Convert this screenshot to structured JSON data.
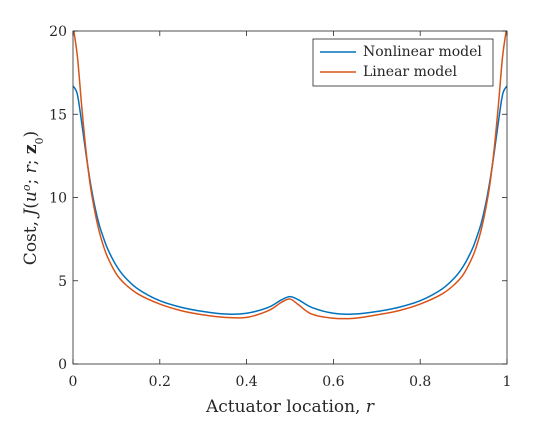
{
  "chart_data": {
    "type": "line",
    "xlabel": "Actuator location, r",
    "ylabel": "Cost, J(u°; r; z₀)",
    "xlim": [
      0,
      1
    ],
    "ylim": [
      0,
      20
    ],
    "x_ticks": [
      0,
      0.2,
      0.4,
      0.6,
      0.8,
      1
    ],
    "x_tick_labels": [
      "0",
      "0.2",
      "0.4",
      "0.6",
      "0.8",
      "1"
    ],
    "y_ticks": [
      0,
      5,
      10,
      15,
      20
    ],
    "y_tick_labels": [
      "0",
      "5",
      "10",
      "15",
      "20"
    ],
    "grid": false,
    "legend_position": "top-right",
    "series": [
      {
        "name": "Nonlinear model",
        "color": "#0072BD",
        "x": [
          0,
          0.01,
          0.02,
          0.03,
          0.04,
          0.05,
          0.06,
          0.07,
          0.08,
          0.1,
          0.12,
          0.15,
          0.2,
          0.25,
          0.3,
          0.35,
          0.4,
          0.45,
          0.48,
          0.5,
          0.52,
          0.55,
          0.6,
          0.65,
          0.7,
          0.75,
          0.8,
          0.85,
          0.88,
          0.9,
          0.92,
          0.93,
          0.94,
          0.95,
          0.96,
          0.97,
          0.98,
          0.99,
          1
        ],
        "y": [
          16.7,
          16.2,
          14.5,
          12.6,
          10.9,
          9.5,
          8.4,
          7.6,
          6.9,
          5.9,
          5.2,
          4.5,
          3.8,
          3.4,
          3.15,
          3.0,
          3.05,
          3.4,
          3.85,
          4.05,
          3.85,
          3.4,
          3.05,
          3.0,
          3.15,
          3.4,
          3.8,
          4.5,
          5.2,
          5.9,
          6.9,
          7.6,
          8.4,
          9.5,
          10.9,
          12.6,
          14.5,
          16.2,
          16.7
        ]
      },
      {
        "name": "Linear model",
        "color": "#D95319",
        "x": [
          0,
          0.01,
          0.02,
          0.03,
          0.04,
          0.05,
          0.06,
          0.07,
          0.08,
          0.1,
          0.12,
          0.15,
          0.2,
          0.25,
          0.3,
          0.35,
          0.4,
          0.45,
          0.48,
          0.5,
          0.52,
          0.55,
          0.6,
          0.65,
          0.7,
          0.75,
          0.8,
          0.85,
          0.88,
          0.9,
          0.92,
          0.93,
          0.94,
          0.95,
          0.96,
          0.97,
          0.98,
          0.99,
          1
        ],
        "y": [
          20.3,
          18.5,
          15.5,
          12.8,
          10.7,
          9.2,
          8.0,
          7.1,
          6.4,
          5.4,
          4.8,
          4.2,
          3.6,
          3.2,
          2.95,
          2.8,
          2.8,
          3.2,
          3.7,
          3.9,
          3.55,
          3.0,
          2.75,
          2.75,
          2.95,
          3.2,
          3.6,
          4.2,
          4.8,
          5.4,
          6.4,
          7.1,
          8.0,
          9.2,
          10.7,
          12.8,
          15.5,
          18.5,
          20.3
        ]
      }
    ]
  }
}
